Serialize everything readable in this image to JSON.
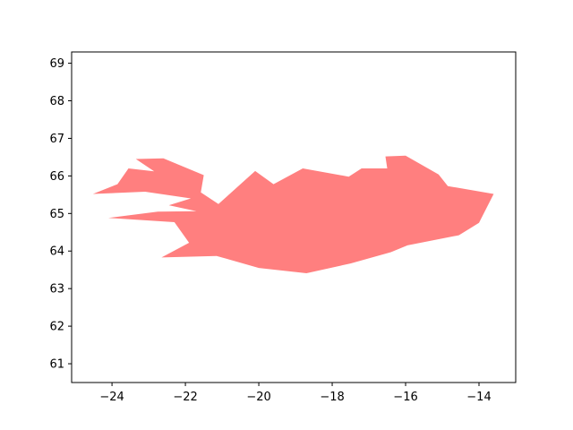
{
  "chart_data": {
    "type": "area",
    "title": "",
    "xlabel": "",
    "ylabel": "",
    "xlim": [
      -25.1,
      -13.0
    ],
    "ylim": [
      60.5,
      69.3
    ],
    "grid": false,
    "xticks": [
      -24,
      -22,
      -20,
      -18,
      -16,
      -14
    ],
    "xtick_labels": [
      "−24",
      "−22",
      "−20",
      "−18",
      "−16",
      "−14"
    ],
    "yticks": [
      61,
      62,
      63,
      64,
      65,
      66,
      67,
      68,
      69
    ],
    "ytick_labels": [
      "61",
      "62",
      "63",
      "64",
      "65",
      "66",
      "67",
      "68",
      "69"
    ],
    "series": [
      {
        "fill_color": "#ff7f7f",
        "polygon": [
          [
            -24.52,
            65.52
          ],
          [
            -23.85,
            65.78
          ],
          [
            -23.55,
            66.2
          ],
          [
            -22.85,
            66.12
          ],
          [
            -23.35,
            66.45
          ],
          [
            -22.6,
            66.47
          ],
          [
            -21.5,
            66.02
          ],
          [
            -21.58,
            65.56
          ],
          [
            -21.1,
            65.25
          ],
          [
            -20.1,
            66.13
          ],
          [
            -19.6,
            65.78
          ],
          [
            -18.8,
            66.2
          ],
          [
            -17.55,
            65.98
          ],
          [
            -17.2,
            66.2
          ],
          [
            -16.5,
            66.2
          ],
          [
            -16.55,
            66.52
          ],
          [
            -16.0,
            66.54
          ],
          [
            -15.1,
            66.04
          ],
          [
            -14.85,
            65.73
          ],
          [
            -13.6,
            65.52
          ],
          [
            -14.0,
            64.75
          ],
          [
            -14.55,
            64.42
          ],
          [
            -15.95,
            64.15
          ],
          [
            -16.4,
            63.97
          ],
          [
            -17.5,
            63.67
          ],
          [
            -18.7,
            63.41
          ],
          [
            -20.0,
            63.55
          ],
          [
            -21.15,
            63.87
          ],
          [
            -22.65,
            63.83
          ],
          [
            -21.9,
            64.22
          ],
          [
            -22.3,
            64.77
          ],
          [
            -24.1,
            64.88
          ],
          [
            -22.75,
            65.05
          ],
          [
            -21.7,
            65.06
          ],
          [
            -22.45,
            65.22
          ],
          [
            -21.85,
            65.4
          ],
          [
            -23.1,
            65.58
          ]
        ]
      }
    ]
  }
}
